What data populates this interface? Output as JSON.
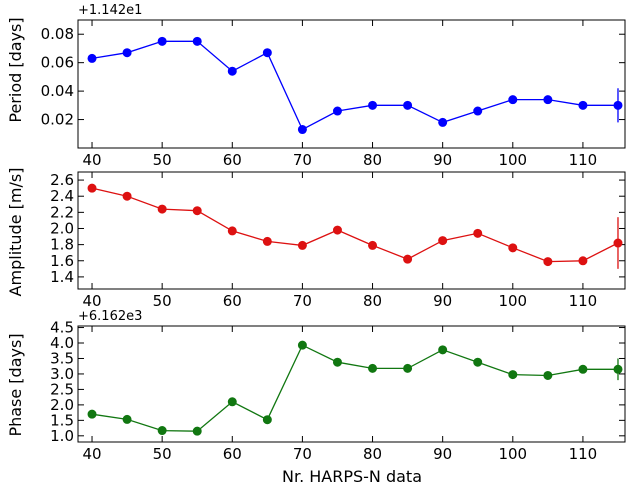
{
  "chart_data": [
    {
      "type": "line",
      "offset_label": "+1.142e1",
      "ylabel": "Period [days]",
      "color": "#0000ff",
      "x": [
        40,
        45,
        50,
        55,
        60,
        65,
        70,
        75,
        80,
        85,
        90,
        95,
        100,
        105,
        110,
        115
      ],
      "values": [
        0.063,
        0.067,
        0.075,
        0.075,
        0.054,
        0.067,
        0.013,
        0.026,
        0.03,
        0.03,
        0.018,
        0.026,
        0.034,
        0.034,
        0.03,
        0.03
      ],
      "error_bar": {
        "x": 115,
        "y": 0.03,
        "err": 0.012
      },
      "xlim": [
        38,
        116
      ],
      "ylim": [
        0.0,
        0.09
      ],
      "yticks": [
        0.02,
        0.04,
        0.06,
        0.08
      ],
      "ytick_labels": [
        "0.02",
        "0.04",
        "0.06",
        "0.08"
      ],
      "xticks": [
        40,
        50,
        60,
        70,
        80,
        90,
        100,
        110
      ],
      "xtick_labels": [
        "40",
        "50",
        "60",
        "70",
        "80",
        "90",
        "100",
        "110"
      ]
    },
    {
      "type": "line",
      "offset_label": "",
      "ylabel": "Amplitude [m/s]",
      "color": "#dd1111",
      "x": [
        40,
        45,
        50,
        55,
        60,
        65,
        70,
        75,
        80,
        85,
        90,
        95,
        100,
        105,
        110,
        115
      ],
      "values": [
        2.5,
        2.4,
        2.24,
        2.22,
        1.97,
        1.84,
        1.79,
        1.98,
        1.79,
        1.62,
        1.85,
        1.94,
        1.76,
        1.59,
        1.6,
        1.82
      ],
      "error_bar": {
        "x": 115,
        "y": 1.82,
        "err": 0.32
      },
      "xlim": [
        38,
        116
      ],
      "ylim": [
        1.25,
        2.7
      ],
      "yticks": [
        1.4,
        1.6,
        1.8,
        2.0,
        2.2,
        2.4,
        2.6
      ],
      "ytick_labels": [
        "1.4",
        "1.6",
        "1.8",
        "2.0",
        "2.2",
        "2.4",
        "2.6"
      ],
      "xticks": [
        40,
        50,
        60,
        70,
        80,
        90,
        100,
        110
      ],
      "xtick_labels": [
        "40",
        "50",
        "60",
        "70",
        "80",
        "90",
        "100",
        "110"
      ]
    },
    {
      "type": "line",
      "offset_label": "+6.162e3",
      "ylabel": "Phase [days]",
      "xlabel": "Nr. HARPS-N data",
      "color": "#117711",
      "x": [
        40,
        45,
        50,
        55,
        60,
        65,
        70,
        75,
        80,
        85,
        90,
        95,
        100,
        105,
        110,
        115
      ],
      "values": [
        1.7,
        1.53,
        1.17,
        1.15,
        2.1,
        1.52,
        3.93,
        3.38,
        3.18,
        3.18,
        3.78,
        3.38,
        2.98,
        2.95,
        3.15,
        3.15
      ],
      "error_bar": {
        "x": 115,
        "y": 3.15,
        "err": 0.35
      },
      "xlim": [
        38,
        116
      ],
      "ylim": [
        0.8,
        4.55
      ],
      "yticks": [
        1.0,
        1.5,
        2.0,
        2.5,
        3.0,
        3.5,
        4.0,
        4.5
      ],
      "ytick_labels": [
        "1.0",
        "1.5",
        "2.0",
        "2.5",
        "3.0",
        "3.5",
        "4.0",
        "4.5"
      ],
      "xticks": [
        40,
        50,
        60,
        70,
        80,
        90,
        100,
        110
      ],
      "xtick_labels": [
        "40",
        "50",
        "60",
        "70",
        "80",
        "90",
        "100",
        "110"
      ]
    }
  ]
}
